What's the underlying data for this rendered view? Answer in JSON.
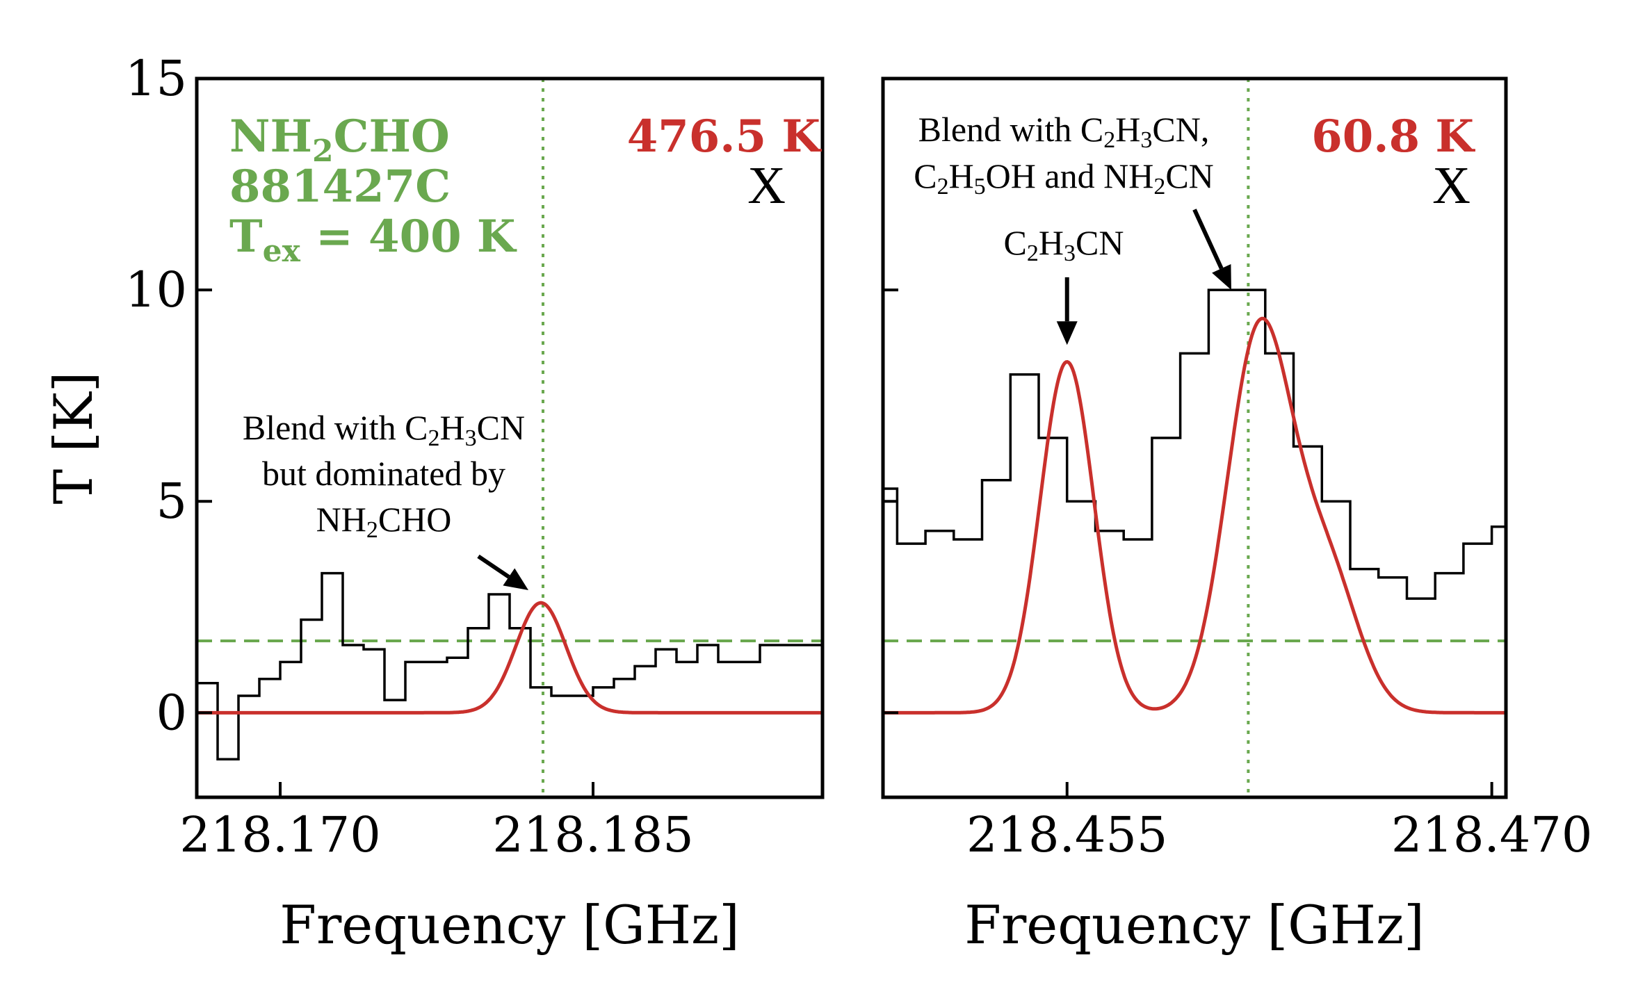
{
  "chart_data": [
    {
      "type": "line",
      "panel": "left",
      "xlabel": "Frequency [GHz]",
      "ylabel": "T [K]",
      "xlim": [
        218.166,
        218.196
      ],
      "ylim": [
        -2,
        15
      ],
      "xticks": [
        218.17,
        218.185
      ],
      "xtick_labels": [
        "218.170",
        "218.185"
      ],
      "yticks": [
        0,
        5,
        10,
        15
      ],
      "ytick_labels": [
        "0",
        "5",
        "10",
        "15"
      ],
      "species": "NH2CHO",
      "source": "881427C",
      "tex_label": "400 K",
      "temperature_label": "476.5 K",
      "mark": "X",
      "rms_level": 1.7,
      "line_rest_freq": 218.1826,
      "annotation": {
        "lines": [
          "Blend with C2H3CN",
          "but dominated by",
          "NH2CHO"
        ],
        "arrow_from": [
          218.1795,
          3.7
        ],
        "arrow_to": [
          218.1819,
          2.9
        ]
      },
      "series": [
        {
          "name": "observed",
          "style": "step",
          "x": [
            218.1665,
            218.1675,
            218.1685,
            218.1695,
            218.1705,
            218.1715,
            218.1725,
            218.1735,
            218.1745,
            218.1755,
            218.1765,
            218.1775,
            218.1785,
            218.1795,
            218.1805,
            218.1815,
            218.1825,
            218.1835,
            218.1845,
            218.1855,
            218.1865,
            218.1875,
            218.1885,
            218.1895,
            218.1905,
            218.1915,
            218.1925,
            218.1935,
            218.1945,
            218.1955
          ],
          "y": [
            0.7,
            -1.1,
            0.4,
            0.8,
            1.2,
            2.2,
            3.3,
            1.6,
            1.5,
            0.3,
            1.2,
            1.2,
            1.3,
            2.0,
            2.8,
            2.0,
            0.6,
            0.4,
            0.4,
            0.6,
            0.8,
            1.1,
            1.5,
            1.2,
            1.6,
            1.2,
            1.2,
            1.6,
            1.6,
            1.6
          ]
        },
        {
          "name": "model",
          "style": "gaussian",
          "components": [
            {
              "center": 218.1825,
              "amplitude": 2.6,
              "sigma": 0.0012
            }
          ]
        }
      ]
    },
    {
      "type": "line",
      "panel": "right",
      "xlabel": "Frequency [GHz]",
      "ylabel": "",
      "xlim": [
        218.4485,
        218.4705
      ],
      "ylim": [
        -2,
        15
      ],
      "xticks": [
        218.455,
        218.47
      ],
      "xtick_labels": [
        "218.455",
        "218.470"
      ],
      "yticks": [
        0,
        5,
        10,
        15
      ],
      "temperature_label": "60.8 K",
      "mark": "X",
      "rms_level": 1.7,
      "line_rest_freq": 218.4614,
      "annotations": [
        {
          "lines": [
            "Blend with C2H3CN,",
            "C2H5OH and NH2CN"
          ],
          "arrow_from": [
            218.4595,
            11.9
          ],
          "arrow_to": [
            218.4608,
            10.0
          ]
        },
        {
          "lines": [
            "C2H3CN"
          ],
          "arrow_from": [
            218.455,
            10.3
          ],
          "arrow_to": [
            218.455,
            8.7
          ]
        }
      ],
      "series": [
        {
          "name": "observed",
          "style": "step",
          "x": [
            218.4485,
            218.4495,
            218.4505,
            218.4515,
            218.4525,
            218.4535,
            218.4545,
            218.4555,
            218.4565,
            218.4575,
            218.4585,
            218.4595,
            218.4605,
            218.4615,
            218.4625,
            218.4635,
            218.4645,
            218.4655,
            218.4665,
            218.4675,
            218.4685,
            218.4695,
            218.4705
          ],
          "y": [
            5.3,
            4.0,
            4.3,
            4.1,
            5.5,
            8.0,
            6.5,
            5.0,
            4.3,
            4.1,
            6.5,
            8.5,
            10.0,
            10.0,
            8.5,
            6.3,
            5.0,
            3.4,
            3.2,
            2.7,
            3.3,
            4.0,
            4.4
          ]
        },
        {
          "name": "model",
          "style": "gaussian",
          "components": [
            {
              "center": 218.455,
              "amplitude": 8.3,
              "sigma": 0.00095
            },
            {
              "center": 218.4618,
              "amplitude": 9.0,
              "sigma": 0.00115
            },
            {
              "center": 218.4642,
              "amplitude": 3.2,
              "sigma": 0.0011
            }
          ]
        }
      ]
    }
  ]
}
